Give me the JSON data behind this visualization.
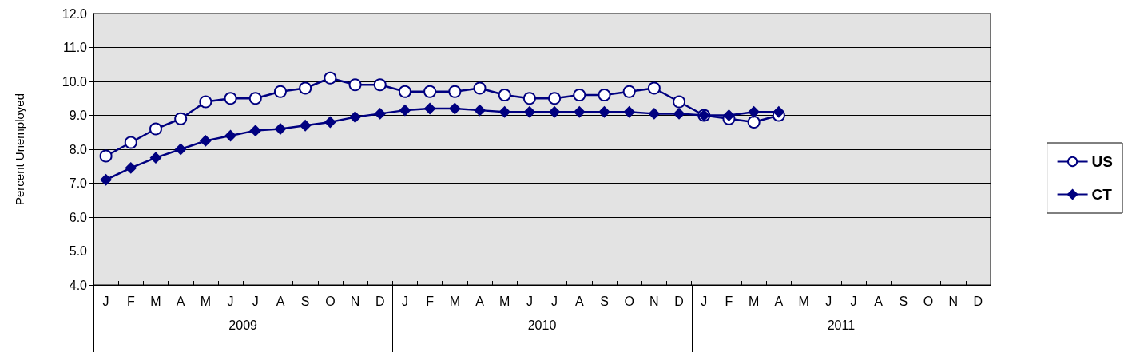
{
  "chart_data": {
    "type": "line",
    "ylabel": "Percent Unemployed",
    "categories": [
      "J",
      "F",
      "M",
      "A",
      "M",
      "J",
      "J",
      "A",
      "S",
      "O",
      "N",
      "D",
      "J",
      "F",
      "M",
      "A",
      "M",
      "J",
      "J",
      "A",
      "S",
      "O",
      "N",
      "D",
      "J",
      "F",
      "M",
      "A",
      "M",
      "J",
      "J",
      "A",
      "S",
      "O",
      "N",
      "D"
    ],
    "annotations": [
      "2009",
      "2010",
      "2011"
    ],
    "series": [
      {
        "name": "US",
        "color": "#000080",
        "marker": "circle",
        "values": [
          7.8,
          8.2,
          8.6,
          8.9,
          9.4,
          9.5,
          9.5,
          9.7,
          9.8,
          10.1,
          9.9,
          9.9,
          9.7,
          9.7,
          9.7,
          9.8,
          9.6,
          9.5,
          9.5,
          9.6,
          9.6,
          9.7,
          9.8,
          9.4,
          9.0,
          8.9,
          8.8,
          9.0,
          null,
          null,
          null,
          null,
          null,
          null,
          null,
          null
        ]
      },
      {
        "name": "CT",
        "color": "#000080",
        "marker": "diamond",
        "values": [
          7.1,
          7.45,
          7.75,
          8.0,
          8.25,
          8.4,
          8.55,
          8.6,
          8.7,
          8.8,
          8.95,
          9.05,
          9.15,
          9.2,
          9.2,
          9.15,
          9.1,
          9.1,
          9.1,
          9.1,
          9.1,
          9.1,
          9.05,
          9.05,
          9.0,
          9.0,
          9.1,
          9.1,
          null,
          null,
          null,
          null,
          null,
          null,
          null,
          null
        ]
      }
    ],
    "ylim": [
      4,
      12
    ],
    "yticks": [
      {
        "value": 4,
        "label": "4.0"
      },
      {
        "value": 5,
        "label": "5.0"
      },
      {
        "value": 6,
        "label": "6.0"
      },
      {
        "value": 7,
        "label": "7.0"
      },
      {
        "value": 8,
        "label": "8.0"
      },
      {
        "value": 9,
        "label": "9.0"
      },
      {
        "value": 10,
        "label": "10.0"
      },
      {
        "value": 11,
        "label": "11.0"
      },
      {
        "value": 12,
        "label": "12.0"
      }
    ],
    "grid": "y",
    "legend": "right",
    "line_style": "solid"
  }
}
